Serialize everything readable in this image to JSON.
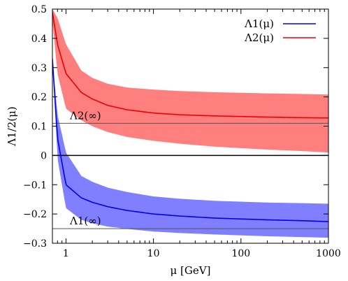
{
  "chart_data": {
    "type": "line",
    "xscale": "log",
    "xlim": [
      0.7,
      1000
    ],
    "ylim": [
      -0.3,
      0.5
    ],
    "xlabel": "μ [GeV]",
    "ylabel": "Λ1/2(μ)",
    "xticks": [
      1,
      10,
      100,
      1000
    ],
    "xtick_labels": [
      "1",
      "10",
      "100",
      "1000"
    ],
    "yticks": [
      -0.3,
      -0.2,
      -0.1,
      0,
      0.1,
      0.2,
      0.3,
      0.4,
      0.5
    ],
    "ytick_labels": [
      "−0.3",
      "−0.2",
      "−0.1",
      "0",
      "0.1",
      "0.2",
      "0.3",
      "0.4",
      "0.5"
    ],
    "legend_position": "top-right",
    "x": [
      0.7,
      0.8,
      1,
      1.5,
      2,
      3,
      5,
      10,
      20,
      50,
      100,
      200,
      500,
      1000
    ],
    "series": [
      {
        "name": "Λ1(μ)",
        "color": "#0000ee",
        "band_color": "#7f7fff",
        "values": [
          0.33,
          0.06,
          -0.1,
          -0.145,
          -0.16,
          -0.175,
          -0.188,
          -0.2,
          -0.207,
          -0.214,
          -0.217,
          -0.22,
          -0.223,
          -0.226
        ],
        "upper": [
          0.33,
          0.14,
          0.01,
          -0.07,
          -0.09,
          -0.11,
          -0.125,
          -0.14,
          -0.148,
          -0.155,
          -0.158,
          -0.161,
          -0.163,
          -0.165
        ],
        "lower": [
          0.33,
          -0.01,
          -0.18,
          -0.22,
          -0.232,
          -0.243,
          -0.251,
          -0.26,
          -0.265,
          -0.27,
          -0.273,
          -0.276,
          -0.279,
          -0.281
        ]
      },
      {
        "name": "Λ2(μ)",
        "color": "#ee0000",
        "band_color": "#ff7f7f",
        "values": [
          0.49,
          0.38,
          0.28,
          0.215,
          0.193,
          0.171,
          0.156,
          0.145,
          0.139,
          0.135,
          0.133,
          0.131,
          0.129,
          0.128
        ],
        "upper": [
          0.5,
          0.47,
          0.38,
          0.29,
          0.265,
          0.245,
          0.232,
          0.225,
          0.22,
          0.216,
          0.214,
          0.212,
          0.21,
          0.208
        ],
        "lower": [
          0.46,
          0.28,
          0.16,
          0.12,
          0.1,
          0.08,
          0.063,
          0.05,
          0.04,
          0.03,
          0.025,
          0.02,
          0.015,
          0.01
        ]
      }
    ],
    "reference_lines": [
      {
        "label": "Λ2(∞)",
        "y": 0.11
      },
      {
        "label": "Λ1(∞)",
        "y": -0.25
      }
    ]
  }
}
